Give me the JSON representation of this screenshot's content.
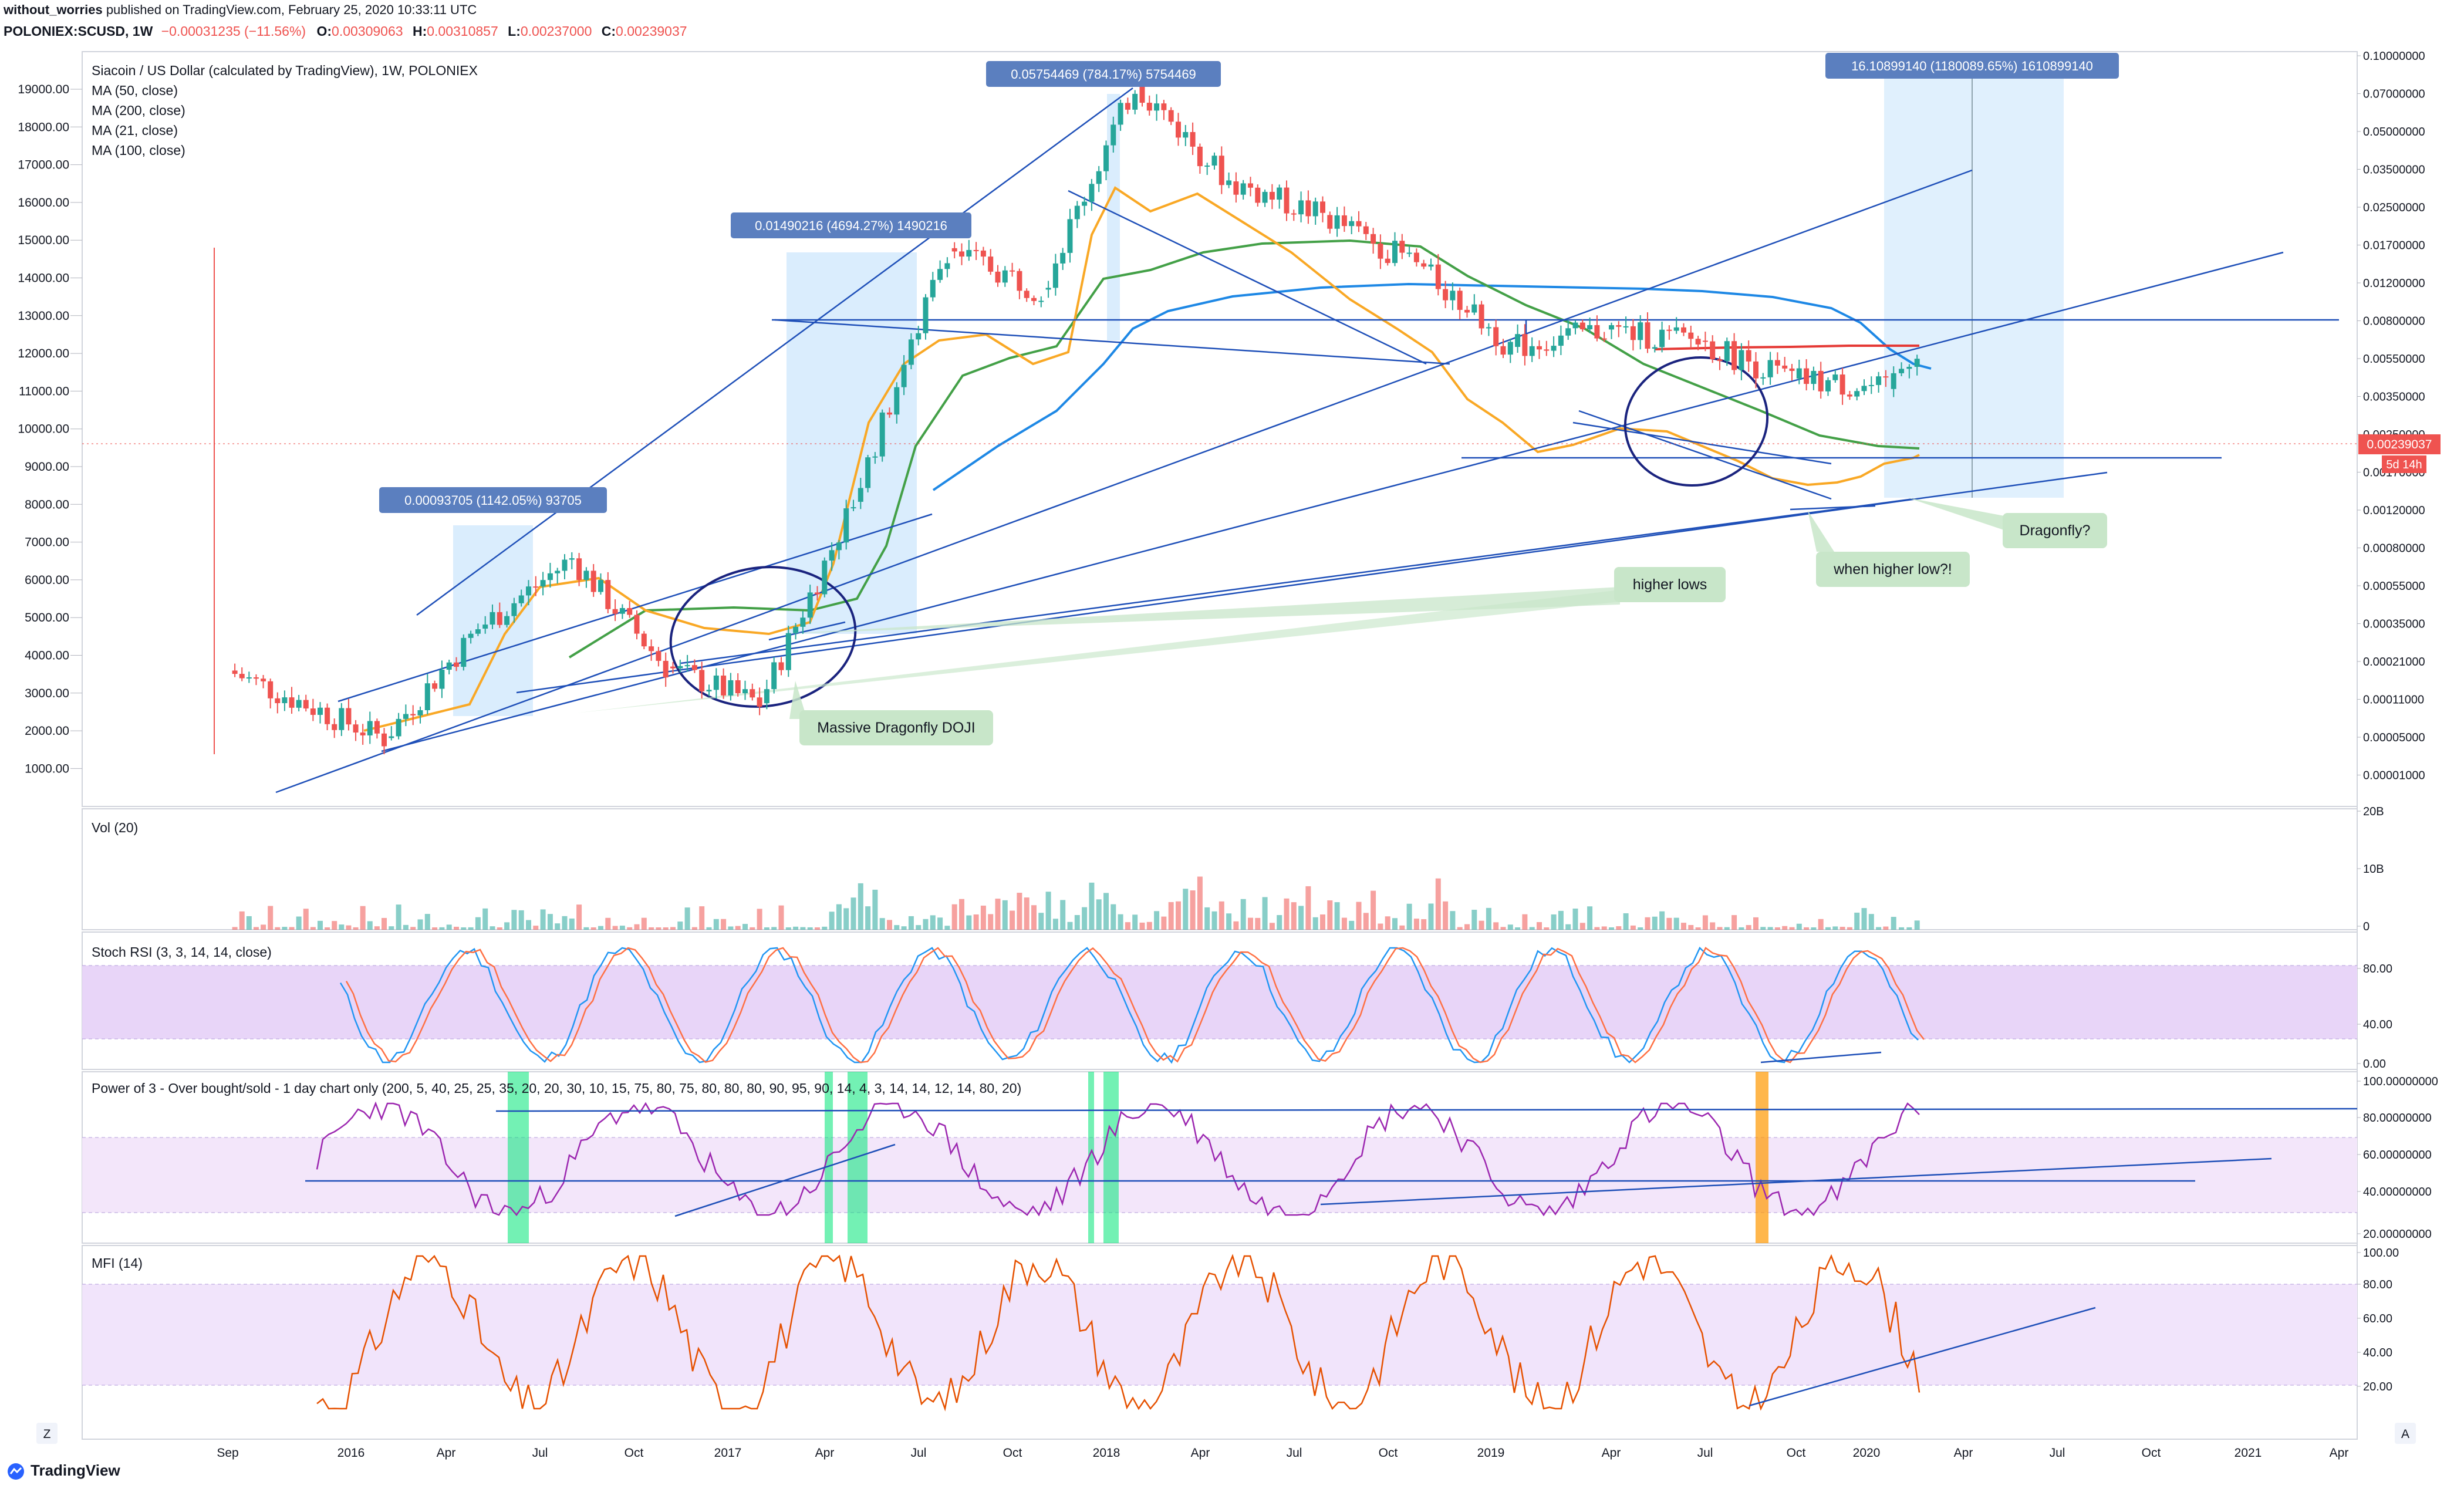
{
  "header": {
    "user": "without_worries",
    "published": "published on TradingView.com, February 25, 2020 10:33:11 UTC",
    "symbol": "POLONIEX:SCUSD, 1W",
    "change": "−0.00031235 (−11.56%)",
    "ohlc": [
      {
        "k": "O:",
        "v": "0.00309063"
      },
      {
        "k": "H:",
        "v": "0.00310857"
      },
      {
        "k": "L:",
        "v": "0.00237000"
      },
      {
        "k": "C:",
        "v": "0.00239037"
      }
    ],
    "last_price": "0.00239037"
  },
  "colors": {
    "up": "#26a69a",
    "down": "#ef5350",
    "ma50": "#43a047",
    "ma200": "#e53935",
    "ma21": "#f9a825",
    "ma100": "#1e88e5",
    "trend": "#1e4fb8",
    "stoch_k": "#2196f3",
    "stoch_d": "#ff7043",
    "power": "#9c27b0",
    "mfi": "#e65100",
    "band": "#e8d5f8",
    "measure": "#bbdefb",
    "callout": "#c8e6c9"
  },
  "main": {
    "title": "Siacoin / US Dollar (calculated by TradingView), 1W, POLONIEX",
    "legend": [
      "MA (50, close)",
      "MA (200, close)",
      "MA (21, close)",
      "MA (100, close)"
    ],
    "left_axis": [
      "19000.00",
      "18000.00",
      "17000.00",
      "16000.00",
      "15000.00",
      "14000.00",
      "13000.00",
      "12000.00",
      "11000.00",
      "10000.00",
      "9000.00",
      "8000.00",
      "7000.00",
      "6000.00",
      "5000.00",
      "4000.00",
      "3000.00",
      "2000.00",
      "1000.00"
    ],
    "right_axis": [
      "0.10000000",
      "0.07000000",
      "0.05000000",
      "0.03500000",
      "0.02500000",
      "0.01700000",
      "0.01200000",
      "0.00800000",
      "0.00550000",
      "0.00350000",
      "0.00250000",
      "0.00170000",
      "0.00120000",
      "0.00080000",
      "0.00055000",
      "0.00035000",
      "0.00021000",
      "0.00011000",
      "0.00005000",
      "0.00001000"
    ],
    "badge_time": "5d 14h",
    "measures": [
      {
        "label": "0.00093705 (1142.05%) 93705"
      },
      {
        "label": "0.01490216 (4694.27%) 1490216"
      },
      {
        "label": "0.05754469 (784.17%) 5754469"
      },
      {
        "label": "16.10899140 (1180089.65%) 1610899140"
      }
    ],
    "callouts": [
      "Massive Dragonfly DOJI",
      "higher lows",
      "when higher low?!",
      "Dragonfly?"
    ]
  },
  "volume": {
    "title": "Vol (20)",
    "axis": [
      "20B",
      "10B",
      "0"
    ]
  },
  "stoch": {
    "title": "Stoch RSI (3, 3, 14, 14, close)",
    "axis": [
      "80.00",
      "40.00",
      "0.00"
    ]
  },
  "power": {
    "title": "Power of 3 - Over bought/sold - 1 day chart only (200, 5, 40, 25, 25, 35, 20, 20, 30, 10, 15, 75, 80, 75, 80, 80, 80, 90, 95, 90, 14, 4, 3, 14, 14, 12, 14, 80, 20)",
    "axis": [
      "100.00000000",
      "80.00000000",
      "60.00000000",
      "40.00000000",
      "20.00000000"
    ]
  },
  "mfi": {
    "title": "MFI (14)",
    "axis": [
      "100.00",
      "80.00",
      "60.00",
      "40.00",
      "20.00"
    ]
  },
  "x_axis": [
    "Sep",
    "2016",
    "Apr",
    "Jul",
    "Oct",
    "2017",
    "Apr",
    "Jul",
    "Oct",
    "2018",
    "Apr",
    "Jul",
    "Oct",
    "2019",
    "Apr",
    "Jul",
    "Oct",
    "2020",
    "Apr",
    "Jul",
    "Oct",
    "2021",
    "Apr"
  ],
  "corner_left": "Z",
  "corner_right": "A",
  "footer": {
    "brand": "TradingView"
  },
  "chart_data": {
    "type": "line",
    "title": "Siacoin / US Dollar (calculated by TradingView), 1W, POLONIEX",
    "xlabel": "",
    "ylabel": "",
    "x": [
      "2015-08",
      "2016-01",
      "2016-04",
      "2016-07",
      "2016-10",
      "2017-01",
      "2017-04",
      "2017-07",
      "2017-10",
      "2018-01",
      "2018-04",
      "2018-07",
      "2018-10",
      "2019-01",
      "2019-04",
      "2019-07",
      "2019-10",
      "2020-01",
      "2020-02"
    ],
    "series": [
      {
        "name": "SCUSD close",
        "values": [
          3.8e-05,
          1.6e-05,
          6.5e-05,
          0.00016,
          4e-05,
          2.5e-05,
          0.00033,
          0.0085,
          0.005,
          0.07,
          0.02,
          0.013,
          0.007,
          0.0024,
          0.003,
          0.0026,
          0.0016,
          0.0014,
          0.00239037
        ]
      }
    ],
    "measures": [
      {
        "label": "0.00093705 (1142.05%) 93705",
        "from": "2016-04",
        "to": "2016-07"
      },
      {
        "label": "0.01490216 (4694.27%) 1490216",
        "from": "2017-03",
        "to": "2017-06"
      },
      {
        "label": "0.05754469 (784.17%) 5754469",
        "from": "2017-12",
        "to": "2018-01"
      },
      {
        "label": "16.10899140 (1180089.65%) 1610899140",
        "from": "2020-01",
        "to": "2020-07"
      }
    ]
  }
}
